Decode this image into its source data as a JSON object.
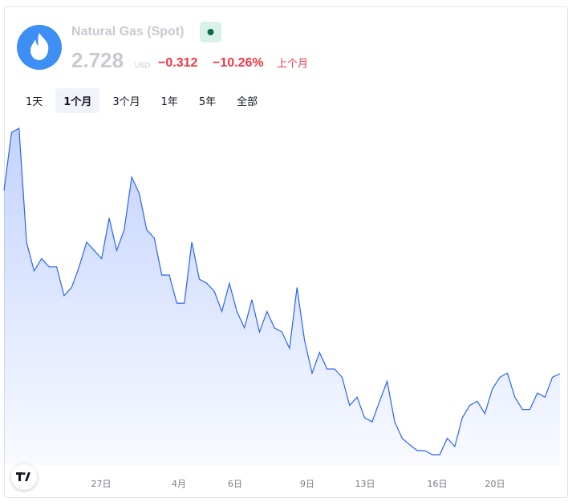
{
  "header": {
    "title": "Natural Gas (Spot)",
    "price": "2.728",
    "currency": "USD",
    "change": "−0.312",
    "change_percent": "−10.26%",
    "period": "上个月"
  },
  "tabs": [
    "1天",
    "1个月",
    "3个月",
    "1年",
    "5年",
    "全部"
  ],
  "active_tab": 1,
  "chart_data": {
    "type": "area",
    "color": "#2962ff",
    "xtick_labels": [
      "27日",
      "4月",
      "6日",
      "9日",
      "13日",
      "16日",
      "20日"
    ],
    "values": [
      3.04,
      3.139,
      3.146,
      2.952,
      2.903,
      2.924,
      2.91,
      2.91,
      2.861,
      2.875,
      2.91,
      2.952,
      2.938,
      2.924,
      2.993,
      2.938,
      2.973,
      3.063,
      3.035,
      2.973,
      2.959,
      2.896,
      2.896,
      2.848,
      2.848,
      2.952,
      2.889,
      2.882,
      2.868,
      2.834,
      2.882,
      2.834,
      2.806,
      2.854,
      2.799,
      2.834,
      2.806,
      2.799,
      2.771,
      2.875,
      2.785,
      2.729,
      2.764,
      2.736,
      2.736,
      2.722,
      2.674,
      2.688,
      2.653,
      2.646,
      2.681,
      2.715,
      2.646,
      2.618,
      2.607,
      2.597,
      2.597,
      2.59,
      2.59,
      2.618,
      2.604,
      2.653,
      2.674,
      2.681,
      2.66,
      2.702,
      2.722,
      2.729,
      2.688,
      2.667,
      2.667,
      2.695,
      2.688,
      2.722,
      2.728
    ]
  }
}
